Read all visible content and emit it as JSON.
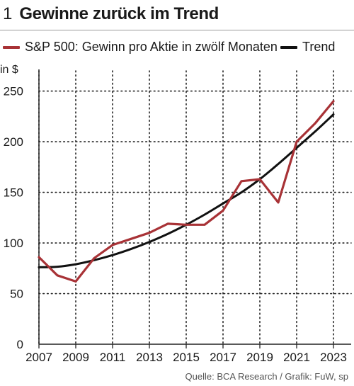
{
  "figure": {
    "number": "1",
    "title": "Gewinne zurück im Trend",
    "unit": "in $",
    "source": "Quelle: BCA Research / Grafik: FuW, sp"
  },
  "colors": {
    "eps": "#a83236",
    "trend": "#111111",
    "grid": "#222222",
    "axis": "#222222"
  },
  "chart_data": {
    "type": "line",
    "xlim": [
      2007,
      2023.6
    ],
    "ylim": [
      0,
      270
    ],
    "x_ticks": [
      2007,
      2009,
      2011,
      2013,
      2015,
      2017,
      2019,
      2021,
      2023
    ],
    "y_ticks": [
      0,
      50,
      100,
      150,
      200,
      250
    ],
    "grid": "dotted",
    "legend": "top",
    "series": [
      {
        "name": "S&P 500: Gewinn pro Aktie in zwölf Monaten",
        "x": [
          2007,
          2008,
          2009,
          2010,
          2011,
          2012,
          2013,
          2014,
          2015,
          2016,
          2017,
          2018,
          2019,
          2020,
          2021,
          2022,
          2023
        ],
        "y": [
          86,
          68,
          62,
          85,
          98,
          104,
          110,
          119,
          118,
          118,
          132,
          161,
          163,
          140,
          200,
          218,
          240
        ]
      },
      {
        "name": "Trend",
        "x": [
          2007,
          2008,
          2009,
          2010,
          2011,
          2012,
          2013,
          2014,
          2015,
          2016,
          2017,
          2018,
          2019,
          2020,
          2021,
          2022,
          2023
        ],
        "y": [
          76,
          76.5,
          79,
          83,
          88,
          94,
          101,
          109,
          118,
          128,
          139,
          150,
          163,
          178,
          194,
          210,
          227
        ]
      }
    ]
  }
}
